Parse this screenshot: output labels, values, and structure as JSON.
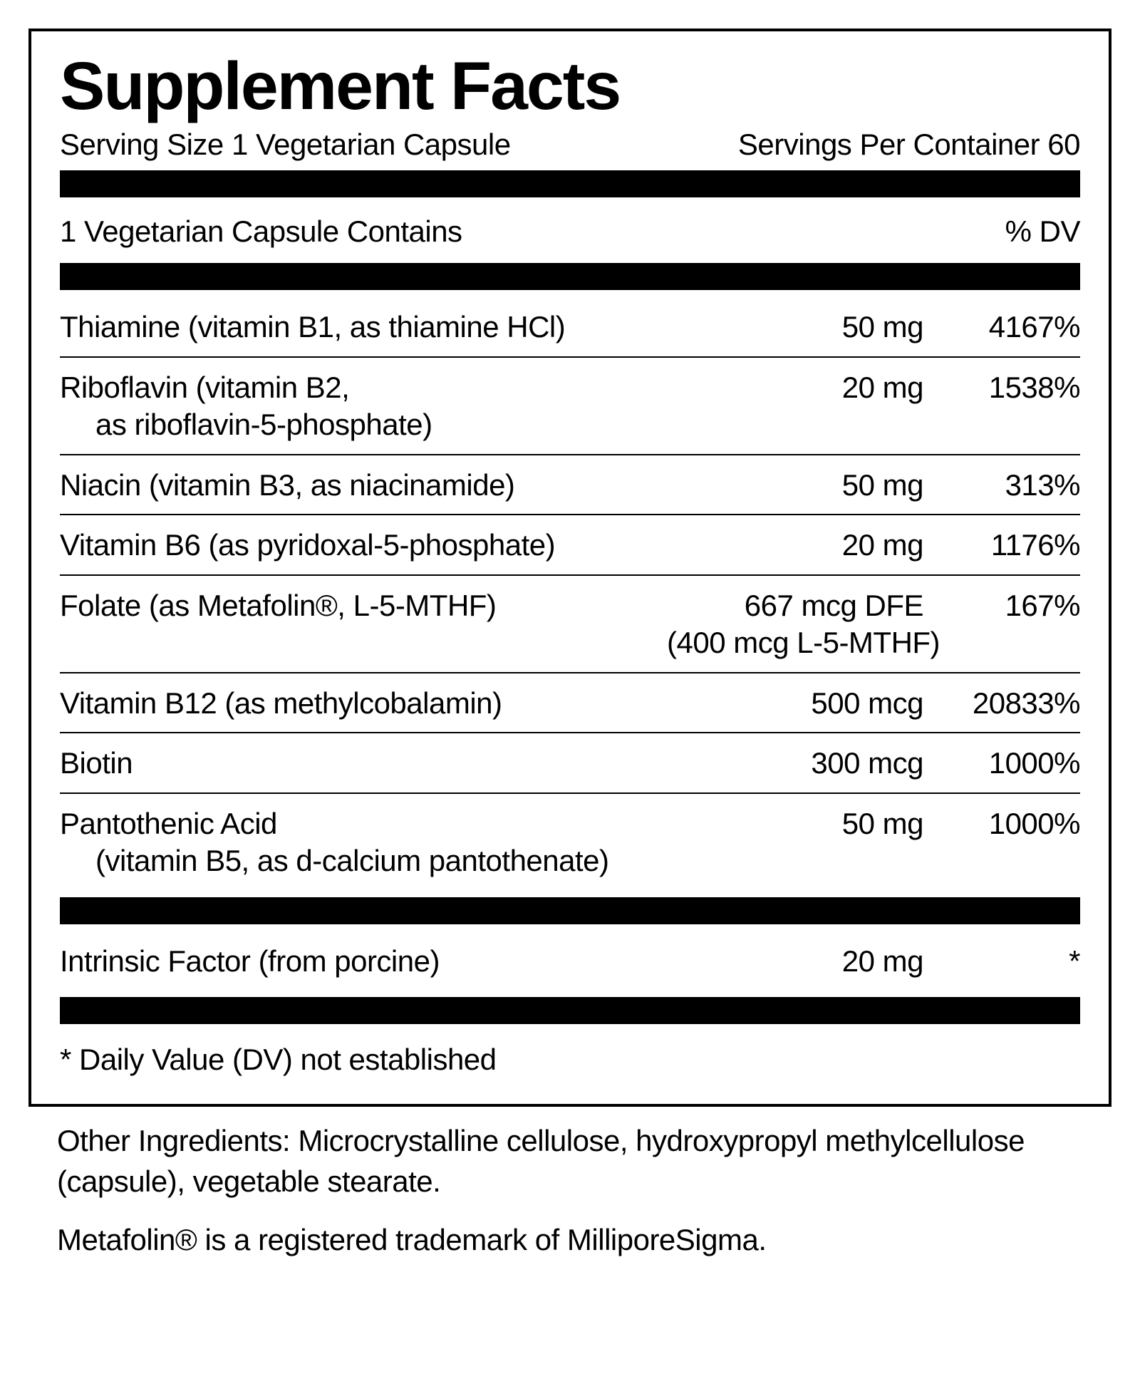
{
  "title": "Supplement Facts",
  "servingSize": "Serving Size 1 Vegetarian Capsule",
  "servingsPerContainer": "Servings Per Container 60",
  "containsHeader": "1 Vegetarian Capsule Contains",
  "dvHeader": "% DV",
  "rows": [
    {
      "name": "Thiamine (vitamin B1, as thiamine HCl)",
      "sub": "",
      "amount": "50 mg",
      "amountSub": "",
      "dv": "4167%"
    },
    {
      "name": "Riboflavin (vitamin B2,",
      "sub": "as riboflavin-5-phosphate)",
      "amount": "20 mg",
      "amountSub": "",
      "dv": "1538%"
    },
    {
      "name": "Niacin (vitamin B3, as niacinamide)",
      "sub": "",
      "amount": "50 mg",
      "amountSub": "",
      "dv": "313%"
    },
    {
      "name": "Vitamin B6 (as pyridoxal-5-phosphate)",
      "sub": "",
      "amount": "20 mg",
      "amountSub": "",
      "dv": "1176%"
    },
    {
      "name": "Folate (as Metafolin®, L-5-MTHF)",
      "sub": "",
      "amount": "667 mcg DFE",
      "amountSub": "(400 mcg L-5-MTHF)",
      "dv": "167%"
    },
    {
      "name": "Vitamin B12 (as methylcobalamin)",
      "sub": "",
      "amount": "500 mcg",
      "amountSub": "",
      "dv": "20833%"
    },
    {
      "name": "Biotin",
      "sub": "",
      "amount": "300 mcg",
      "amountSub": "",
      "dv": "1000%"
    },
    {
      "name": "Pantothenic Acid",
      "sub": "(vitamin B5, as d-calcium pantothenate)",
      "amount": "50 mg",
      "amountSub": "",
      "dv": "1000%"
    }
  ],
  "extraRows": [
    {
      "name": "Intrinsic Factor (from porcine)",
      "sub": "",
      "amount": "20 mg",
      "amountSub": "",
      "dv": "*"
    }
  ],
  "footnote": "* Daily Value (DV) not established",
  "otherIngredients": "Other Ingredients: Microcrystalline cellulose, hydroxypropyl methylcellulose (capsule), vegetable stearate.",
  "trademark": "Metafolin® is a registered trademark of MilliporeSigma.",
  "colors": {
    "text": "#000000",
    "background": "#ffffff",
    "border": "#000000"
  }
}
